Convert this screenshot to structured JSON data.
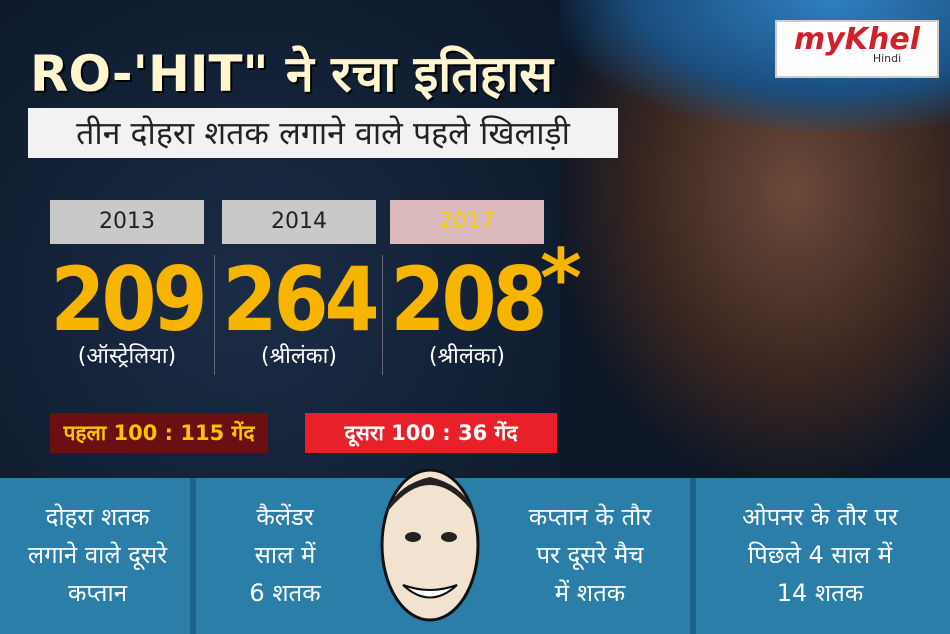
{
  "logo": {
    "brand": "myKhel",
    "sub": "Hindi"
  },
  "header": {
    "title": "RO-'HIT\" ने रचा इतिहास",
    "subtitle": "तीन दोहरा शतक लगाने वाले पहले खिलाड़ी"
  },
  "scores": [
    {
      "year": "2013",
      "score": 209,
      "opponent": "(ऑस्ट्रेलिया)"
    },
    {
      "year": "2014",
      "score": 264,
      "opponent": "(श्रीलंका)"
    },
    {
      "year": "2017",
      "score": 208,
      "opponent": "(श्रीलंका)",
      "mark": "*"
    }
  ],
  "badges": [
    "पहला 100 : 115 गेंद",
    "दूसरा 100 : 36 गेंद"
  ],
  "facts": [
    [
      "दोहरा शतक",
      "लगाने वाले दूसरे",
      "कप्तान"
    ],
    [
      "कैलेंडर",
      "साल में",
      "6 शतक"
    ],
    [
      "कप्तान के तौर",
      "पर दूसरे मैच",
      "में शतक"
    ],
    [
      "ओपनर के तौर पर",
      "पिछले 4 साल में",
      "14 शतक"
    ]
  ]
}
